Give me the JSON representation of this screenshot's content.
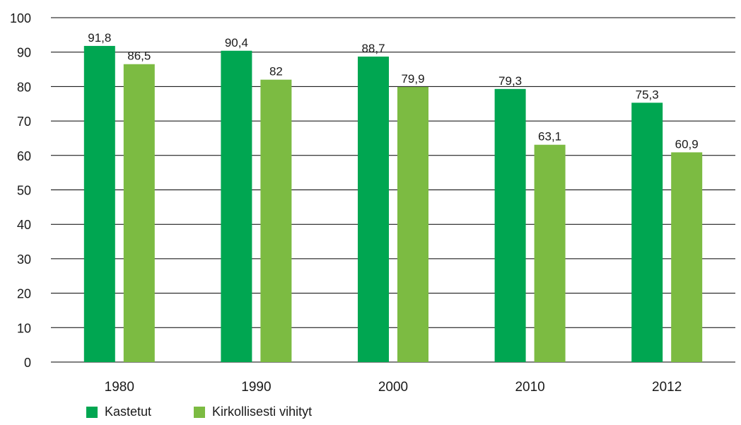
{
  "chart_data": {
    "type": "bar",
    "title": "",
    "xlabel": "",
    "ylabel": "",
    "categories": [
      "1980",
      "1990",
      "2000",
      "2010",
      "2012"
    ],
    "series": [
      {
        "name": "Kastetut",
        "color": "#00a651",
        "values": [
          91.8,
          90.4,
          88.7,
          79.3,
          75.3
        ]
      },
      {
        "name": "Kirkollisesti vihityt",
        "color": "#7cbb42",
        "values": [
          86.5,
          82,
          79.9,
          63.1,
          60.9
        ]
      }
    ],
    "value_labels": [
      [
        "91,8",
        "90,4",
        "88,7",
        "79,3",
        "75,3"
      ],
      [
        "86,5",
        "82",
        "79,9",
        "63,1",
        "60,9"
      ]
    ],
    "ylim": [
      0,
      100
    ],
    "yticks": [
      0,
      10,
      20,
      30,
      40,
      50,
      60,
      70,
      80,
      90,
      100
    ],
    "grid": true,
    "legend_position": "bottom-left"
  }
}
